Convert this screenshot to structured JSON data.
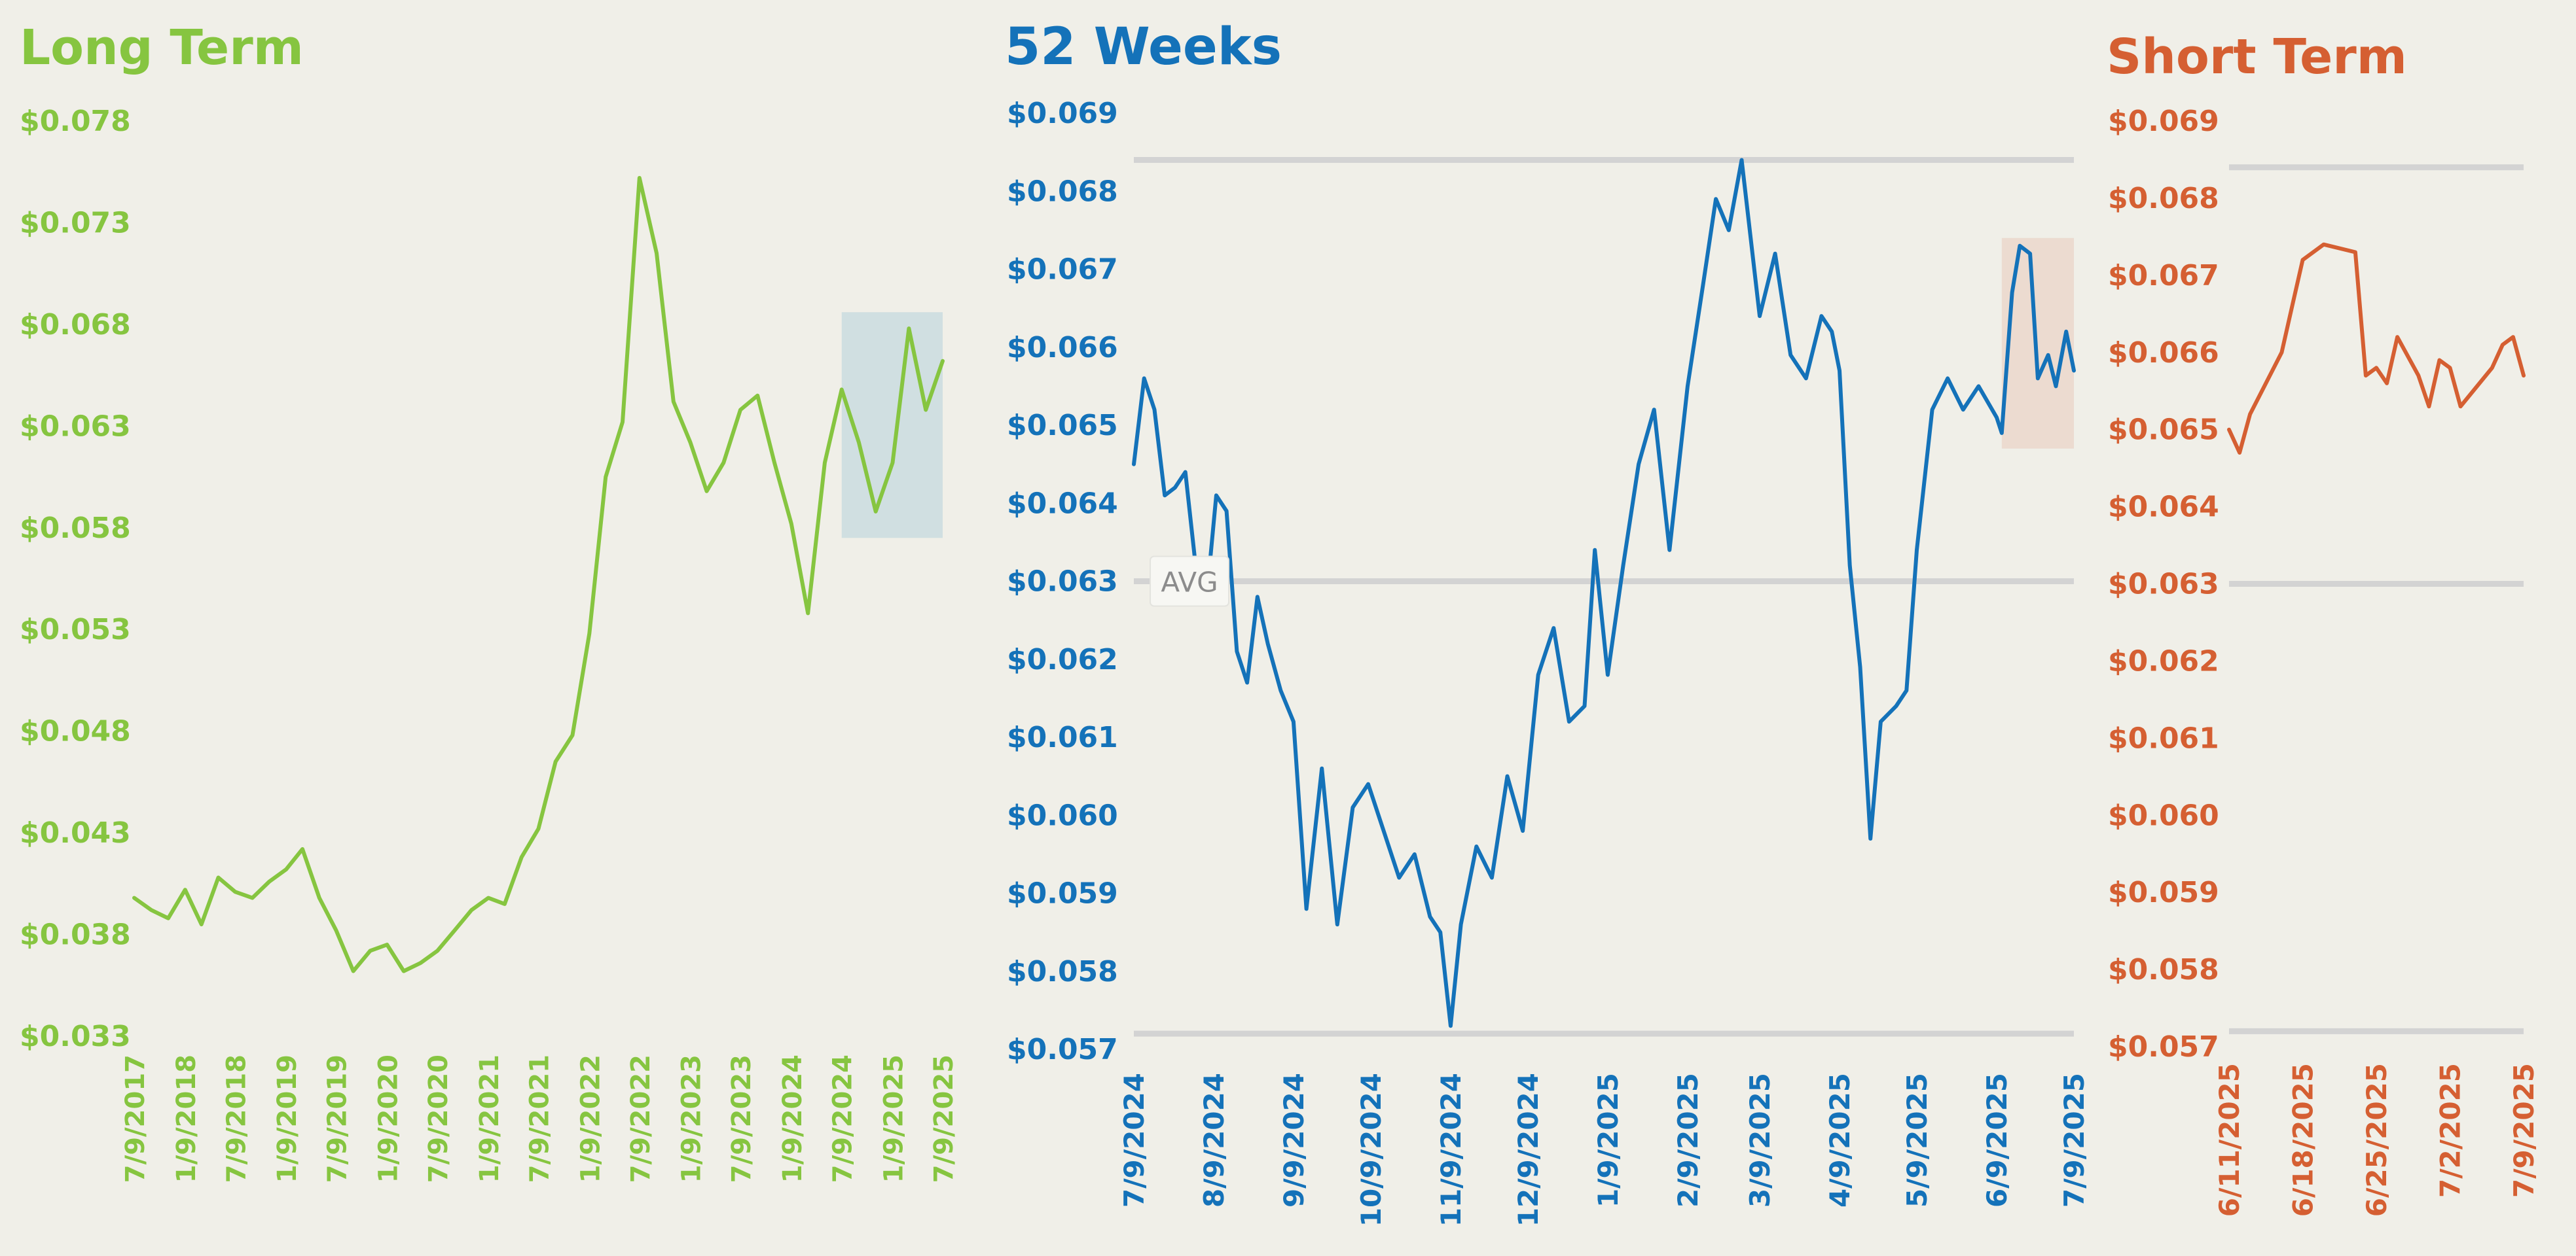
{
  "colors": {
    "background": "#f0efe8",
    "long_term": "#86c540",
    "weeks_52": "#1472b9",
    "short_term": "#d55f32",
    "reference_line": "#d3d3d3",
    "long_highlight": "#d0dfe1",
    "weeks_highlight": "#ecdbd0"
  },
  "chart_data": [
    {
      "type": "line",
      "title": "Long Term",
      "xlabel": "",
      "ylabel": "",
      "ylim": [
        0.033,
        0.078
      ],
      "y_ticks": [
        "$0.078",
        "$0.073",
        "$0.068",
        "$0.063",
        "$0.058",
        "$0.053",
        "$0.048",
        "$0.043",
        "$0.038",
        "$0.033"
      ],
      "x_ticks": [
        "7/9/2017",
        "1/9/2018",
        "7/9/2018",
        "1/9/2019",
        "7/9/2019",
        "1/9/2020",
        "7/9/2020",
        "1/9/2021",
        "7/9/2021",
        "1/9/2022",
        "7/9/2022",
        "1/9/2023",
        "7/9/2023",
        "1/9/2024",
        "7/9/2024",
        "1/9/2025",
        "7/9/2025"
      ],
      "grid": false,
      "highlight_region": {
        "x_from": "7/9/2024",
        "x_to": "7/9/2025",
        "y_from": 0.0575,
        "y_to": 0.0686
      },
      "series": [
        {
          "x": [
            "7/9/2017",
            "9/9/2017",
            "11/9/2017",
            "1/9/2018",
            "3/9/2018",
            "5/9/2018",
            "7/9/2018",
            "9/9/2018",
            "11/9/2018",
            "1/9/2019",
            "3/9/2019",
            "5/9/2019",
            "7/9/2019",
            "9/9/2019",
            "11/9/2019",
            "1/9/2020",
            "3/9/2020",
            "5/9/2020",
            "7/9/2020",
            "9/9/2020",
            "11/9/2020",
            "1/9/2021",
            "3/9/2021",
            "5/9/2021",
            "7/9/2021",
            "9/9/2021",
            "11/9/2021",
            "1/9/2022",
            "3/9/2022",
            "5/9/2022",
            "7/9/2022",
            "9/9/2022",
            "11/9/2022",
            "1/9/2023",
            "3/9/2023",
            "5/9/2023",
            "7/9/2023",
            "9/9/2023",
            "11/9/2023",
            "1/9/2024",
            "3/9/2024",
            "5/9/2024",
            "7/9/2024",
            "9/9/2024",
            "11/9/2024",
            "1/9/2025",
            "3/9/2025",
            "5/9/2025",
            "7/9/2025"
          ],
          "values": [
            0.0398,
            0.0392,
            0.0388,
            0.0402,
            0.0385,
            0.0408,
            0.0401,
            0.0398,
            0.0406,
            0.0412,
            0.0422,
            0.0398,
            0.0382,
            0.0362,
            0.0372,
            0.0375,
            0.0362,
            0.0366,
            0.0372,
            0.0382,
            0.0392,
            0.0398,
            0.0395,
            0.0418,
            0.0432,
            0.0465,
            0.0478,
            0.0528,
            0.0605,
            0.0632,
            0.0752,
            0.0715,
            0.0642,
            0.0622,
            0.0598,
            0.0612,
            0.0638,
            0.0645,
            0.0612,
            0.0582,
            0.0538,
            0.0612,
            0.0648,
            0.0622,
            0.0588,
            0.0612,
            0.0678,
            0.0638,
            0.0662
          ]
        }
      ]
    },
    {
      "type": "line",
      "title": "52 Weeks",
      "xlabel": "",
      "ylabel": "",
      "ylim": [
        0.057,
        0.069
      ],
      "y_ticks": [
        "$0.069",
        "$0.068",
        "$0.067",
        "$0.066",
        "$0.065",
        "$0.064",
        "$0.063",
        "$0.062",
        "$0.061",
        "$0.060",
        "$0.059",
        "$0.058",
        "$0.057"
      ],
      "x_ticks": [
        "7/9/2024",
        "8/9/2024",
        "9/9/2024",
        "10/9/2024",
        "11/9/2024",
        "12/9/2024",
        "1/9/2025",
        "2/9/2025",
        "3/9/2025",
        "4/9/2025",
        "5/9/2025",
        "6/9/2025",
        "7/9/2025"
      ],
      "grid": false,
      "reference_lines": [
        {
          "label": "",
          "value": 0.0684
        },
        {
          "label": "AVG",
          "value": 0.063
        },
        {
          "label": "",
          "value": 0.0572
        }
      ],
      "highlight_region": {
        "x_from": "6/11/2025",
        "x_to": "7/9/2025",
        "y_from": 0.0647,
        "y_to": 0.0674
      },
      "series": [
        {
          "x": [
            "7/9/2024",
            "7/13/2024",
            "7/17/2024",
            "7/21/2024",
            "7/25/2024",
            "7/29/2024",
            "8/2/2024",
            "8/6/2024",
            "8/10/2024",
            "8/14/2024",
            "8/18/2024",
            "8/22/2024",
            "8/26/2024",
            "8/30/2024",
            "9/4/2024",
            "9/9/2024",
            "9/14/2024",
            "9/20/2024",
            "9/26/2024",
            "10/2/2024",
            "10/8/2024",
            "10/14/2024",
            "10/20/2024",
            "10/26/2024",
            "11/1/2024",
            "11/5/2024",
            "11/9/2024",
            "11/13/2024",
            "11/19/2024",
            "11/25/2024",
            "12/1/2024",
            "12/7/2024",
            "12/13/2024",
            "12/19/2024",
            "12/25/2024",
            "12/31/2024",
            "1/4/2025",
            "1/9/2025",
            "1/15/2025",
            "1/21/2025",
            "1/27/2025",
            "2/2/2025",
            "2/9/2025",
            "2/15/2025",
            "2/20/2025",
            "2/25/2025",
            "3/2/2025",
            "3/9/2025",
            "3/15/2025",
            "3/21/2025",
            "3/27/2025",
            "4/2/2025",
            "4/6/2025",
            "4/9/2025",
            "4/13/2025",
            "4/17/2025",
            "4/21/2025",
            "4/25/2025",
            "5/1/2025",
            "5/5/2025",
            "5/9/2025",
            "5/15/2025",
            "5/21/2025",
            "5/27/2025",
            "6/2/2025",
            "6/9/2025",
            "6/11/2025",
            "6/15/2025",
            "6/18/2025",
            "6/22/2025",
            "6/25/2025",
            "6/29/2025",
            "7/2/2025",
            "7/6/2025",
            "7/9/2025"
          ],
          "values": [
            0.0645,
            0.0656,
            0.0652,
            0.0641,
            0.0642,
            0.0644,
            0.0632,
            0.0627,
            0.0641,
            0.0639,
            0.0621,
            0.0617,
            0.0628,
            0.0622,
            0.0616,
            0.0612,
            0.0588,
            0.0606,
            0.0586,
            0.0601,
            0.0604,
            0.0598,
            0.0592,
            0.0595,
            0.0587,
            0.0585,
            0.0573,
            0.0586,
            0.0596,
            0.0592,
            0.0605,
            0.0598,
            0.0618,
            0.0624,
            0.0612,
            0.0614,
            0.0634,
            0.0618,
            0.0632,
            0.0645,
            0.0652,
            0.0634,
            0.0655,
            0.0668,
            0.0679,
            0.0675,
            0.0684,
            0.0664,
            0.0672,
            0.0659,
            0.0656,
            0.0664,
            0.0662,
            0.0657,
            0.0632,
            0.0619,
            0.0597,
            0.0612,
            0.0614,
            0.0616,
            0.0634,
            0.0652,
            0.0656,
            0.0652,
            0.0655,
            0.0651,
            0.0649,
            0.0667,
            0.0673,
            0.0672,
            0.0656,
            0.0659,
            0.0655,
            0.0662,
            0.0657
          ]
        }
      ]
    },
    {
      "type": "line",
      "title": "Short Term",
      "xlabel": "",
      "ylabel": "",
      "ylim": [
        0.057,
        0.069
      ],
      "y_ticks": [
        "$0.069",
        "$0.068",
        "$0.067",
        "$0.066",
        "$0.065",
        "$0.064",
        "$0.063",
        "$0.062",
        "$0.061",
        "$0.060",
        "$0.059",
        "$0.058",
        "$0.057"
      ],
      "x_ticks": [
        "6/11/2025",
        "6/18/2025",
        "6/25/2025",
        "7/2/2025",
        "7/9/2025"
      ],
      "grid": false,
      "reference_lines": [
        {
          "label": "",
          "value": 0.0684
        },
        {
          "label": "",
          "value": 0.063
        },
        {
          "label": "",
          "value": 0.0572
        }
      ],
      "series": [
        {
          "x": [
            "6/11/2025",
            "6/12/2025",
            "6/13/2025",
            "6/16/2025",
            "6/17/2025",
            "6/18/2025",
            "6/20/2025",
            "6/23/2025",
            "6/24/2025",
            "6/25/2025",
            "6/26/2025",
            "6/27/2025",
            "6/29/2025",
            "6/30/2025",
            "7/1/2025",
            "7/2/2025",
            "7/3/2025",
            "7/6/2025",
            "7/7/2025",
            "7/8/2025",
            "7/9/2025"
          ],
          "values": [
            0.065,
            0.0647,
            0.0652,
            0.066,
            0.0666,
            0.0672,
            0.0674,
            0.0673,
            0.0657,
            0.0658,
            0.0656,
            0.0662,
            0.0657,
            0.0653,
            0.0659,
            0.0658,
            0.0653,
            0.0658,
            0.0661,
            0.0662,
            0.0657
          ]
        }
      ]
    }
  ]
}
